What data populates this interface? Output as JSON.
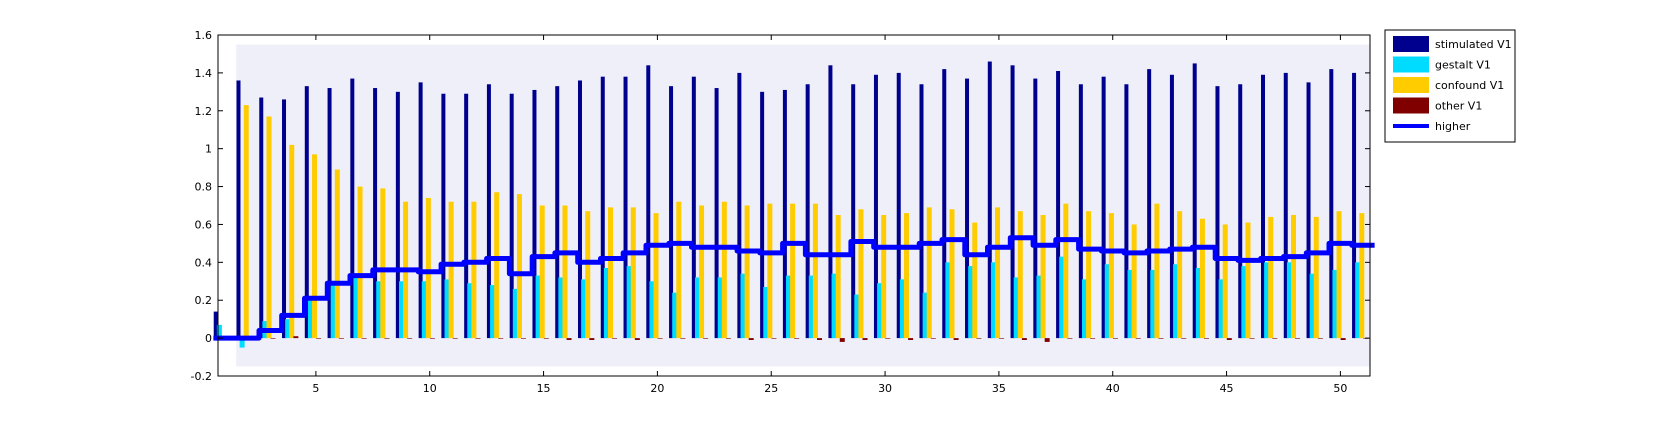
{
  "chart_data": {
    "type": "bar",
    "x": [
      1,
      2,
      3,
      4,
      5,
      6,
      7,
      8,
      9,
      10,
      11,
      12,
      13,
      14,
      15,
      16,
      17,
      18,
      19,
      20,
      21,
      22,
      23,
      24,
      25,
      26,
      27,
      28,
      29,
      30,
      31,
      32,
      33,
      34,
      35,
      36,
      37,
      38,
      39,
      40,
      41,
      42,
      43,
      44,
      45,
      46,
      47,
      48,
      49,
      50,
      51
    ],
    "xlim": [
      0.7,
      51.3
    ],
    "ylim": [
      -0.2,
      1.6
    ],
    "xticks": [
      5,
      10,
      15,
      20,
      25,
      30,
      35,
      40,
      45,
      50
    ],
    "yticks": [
      -0.2,
      0,
      0.2,
      0.4,
      0.6,
      0.8,
      1,
      1.2,
      1.4,
      1.6
    ],
    "ytick_labels": [
      "-0.2",
      "0",
      "0.2",
      "0.4",
      "0.6",
      "0.8",
      "1",
      "1.2",
      "1.4",
      "1.6"
    ],
    "grid": false,
    "legend_position": "outside-top-right",
    "series": [
      {
        "name": "stimulated V1",
        "color": "#00008f",
        "values": [
          0.14,
          1.36,
          1.27,
          1.26,
          1.33,
          1.32,
          1.37,
          1.32,
          1.3,
          1.35,
          1.29,
          1.29,
          1.34,
          1.29,
          1.31,
          1.33,
          1.36,
          1.38,
          1.38,
          1.44,
          1.33,
          1.38,
          1.32,
          1.4,
          1.3,
          1.31,
          1.34,
          1.44,
          1.34,
          1.39,
          1.4,
          1.34,
          1.42,
          1.37,
          1.46,
          1.44,
          1.37,
          1.41,
          1.34,
          1.38,
          1.34,
          1.42,
          1.39,
          1.45,
          1.33,
          1.34,
          1.39,
          1.4,
          1.35,
          1.42,
          1.4
        ]
      },
      {
        "name": "gestalt V1",
        "color": "#00dcff",
        "values": [
          0.07,
          -0.05,
          0.09,
          0.1,
          0.21,
          0.3,
          0.32,
          0.3,
          0.3,
          0.3,
          0.31,
          0.29,
          0.28,
          0.26,
          0.33,
          0.32,
          0.31,
          0.37,
          0.38,
          0.3,
          0.24,
          0.32,
          0.32,
          0.34,
          0.27,
          0.33,
          0.33,
          0.34,
          0.23,
          0.29,
          0.31,
          0.24,
          0.4,
          0.38,
          0.4,
          0.32,
          0.33,
          0.43,
          0.31,
          0.39,
          0.36,
          0.36,
          0.39,
          0.37,
          0.31,
          0.38,
          0.4,
          0.4,
          0.34,
          0.36,
          0.4
        ]
      },
      {
        "name": "confound V1",
        "color": "#ffcc00",
        "values": [
          0,
          1.23,
          1.17,
          1.02,
          0.97,
          0.89,
          0.8,
          0.79,
          0.72,
          0.74,
          0.72,
          0.72,
          0.77,
          0.76,
          0.7,
          0.7,
          0.67,
          0.69,
          0.69,
          0.66,
          0.72,
          0.7,
          0.72,
          0.7,
          0.71,
          0.71,
          0.71,
          0.65,
          0.68,
          0.65,
          0.66,
          0.69,
          0.68,
          0.61,
          0.69,
          0.67,
          0.65,
          0.71,
          0.67,
          0.66,
          0.6,
          0.71,
          0.67,
          0.63,
          0.6,
          0.61,
          0.64,
          0.65,
          0.64,
          0.67,
          0.66
        ]
      },
      {
        "name": "other V1",
        "color": "#800000",
        "values": [
          0,
          0,
          0,
          0.01,
          0,
          0,
          0,
          0,
          0,
          0,
          0,
          0,
          0,
          0,
          0,
          -0.01,
          -0.01,
          0,
          -0.01,
          0,
          0,
          0,
          0,
          -0.01,
          0,
          0,
          -0.01,
          -0.02,
          -0.01,
          0,
          -0.01,
          0,
          -0.01,
          0,
          0,
          -0.01,
          -0.02,
          0,
          0,
          0,
          0,
          0,
          0,
          0,
          -0.01,
          0,
          0,
          0,
          0,
          -0.01,
          0
        ]
      },
      {
        "name": "higher",
        "type": "line",
        "color": "#0000ff",
        "values": [
          0.0,
          0.0,
          0.04,
          0.12,
          0.21,
          0.29,
          0.33,
          0.36,
          0.36,
          0.35,
          0.39,
          0.4,
          0.42,
          0.34,
          0.43,
          0.45,
          0.4,
          0.42,
          0.45,
          0.49,
          0.5,
          0.48,
          0.48,
          0.46,
          0.45,
          0.5,
          0.44,
          0.44,
          0.51,
          0.48,
          0.48,
          0.5,
          0.52,
          0.44,
          0.48,
          0.53,
          0.49,
          0.52,
          0.47,
          0.46,
          0.45,
          0.46,
          0.47,
          0.48,
          0.42,
          0.41,
          0.42,
          0.43,
          0.45,
          0.5,
          0.49
        ]
      }
    ]
  }
}
